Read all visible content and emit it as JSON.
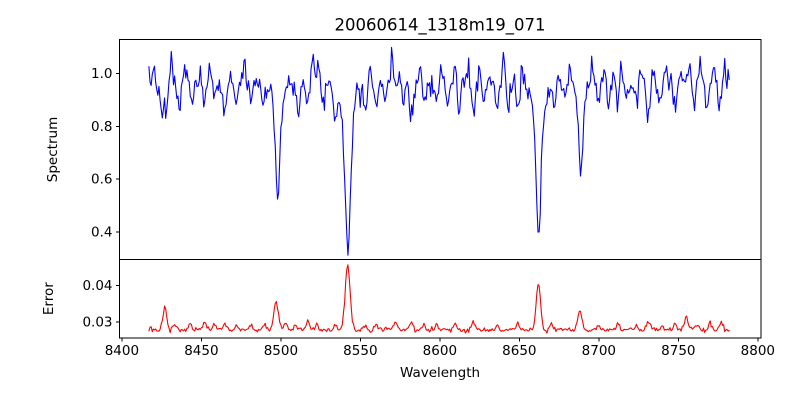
{
  "figure": {
    "background": "#ffffff",
    "frame_color": "#000000",
    "text_color": "#000000"
  },
  "chart_data": {
    "type": "line",
    "title": "20060614_1318m19_071",
    "xlabel": "Wavelength",
    "grid": false,
    "legend": null,
    "x_axis": {
      "lim": [
        8398.5,
        8802.0
      ],
      "ticks": [
        8400,
        8450,
        8500,
        8550,
        8600,
        8650,
        8700,
        8750,
        8800
      ],
      "tick_labels": [
        "8400",
        "8450",
        "8500",
        "8550",
        "8600",
        "8650",
        "8700",
        "8750",
        "8800"
      ]
    },
    "data_x_range": [
      8417,
      8782
    ],
    "panels": [
      {
        "ylabel": "Spectrum",
        "ylim": [
          0.295,
          1.129
        ],
        "yticks": [
          0.4,
          0.6,
          0.8,
          1.0
        ],
        "ytick_labels": [
          "0.4",
          "0.6",
          "0.8",
          "1.0"
        ],
        "line_color": "#0000ff",
        "main_absorption_lines": [
          {
            "wavelength": 8498,
            "core_flux": 0.53
          },
          {
            "wavelength": 8542,
            "core_flux": 0.33
          },
          {
            "wavelength": 8662,
            "core_flux": 0.37
          },
          {
            "wavelength": 8688,
            "core_flux": 0.68
          }
        ],
        "series": {
          "x_start": 8417,
          "x_end": 8782,
          "n": 520,
          "seed": 7,
          "base_level": 0.968,
          "noise_sd": 0.021,
          "feature_format": "[center_wavelength, amplitude, gaussian_sigma]",
          "dips": [
            [
              8498.0,
              0.33,
              1.3
            ],
            [
              8498.0,
              0.105,
              3.5
            ],
            [
              8542.1,
              0.5,
              1.6
            ],
            [
              8542.1,
              0.14,
              4.5
            ],
            [
              8662.1,
              0.46,
              1.5
            ],
            [
              8662.1,
              0.14,
              4.0
            ],
            [
              8688.6,
              0.29,
              1.4
            ],
            [
              8688.6,
              0.04,
              3.0
            ],
            [
              8425,
              0.13,
              1.2
            ],
            [
              8428,
              0.12,
              1.0
            ],
            [
              8436,
              0.1,
              1.1
            ],
            [
              8444,
              0.08,
              1.0
            ],
            [
              8452,
              0.09,
              1.0
            ],
            [
              8458,
              0.07,
              0.9
            ],
            [
              8465,
              0.14,
              1.1
            ],
            [
              8472,
              0.08,
              0.9
            ],
            [
              8481,
              0.07,
              0.9
            ],
            [
              8489,
              0.09,
              1.0
            ],
            [
              8511,
              0.09,
              1.0
            ],
            [
              8517,
              0.1,
              1.1
            ],
            [
              8527,
              0.07,
              0.9
            ],
            [
              8534,
              0.1,
              1.0
            ],
            [
              8553,
              0.08,
              0.9
            ],
            [
              8560,
              0.09,
              1.0
            ],
            [
              8566,
              0.08,
              0.9
            ],
            [
              8577,
              0.07,
              0.9
            ],
            [
              8582,
              0.12,
              1.1
            ],
            [
              8590,
              0.08,
              0.9
            ],
            [
              8598,
              0.08,
              0.9
            ],
            [
              8605,
              0.09,
              1.0
            ],
            [
              8612,
              0.11,
              1.0
            ],
            [
              8621,
              0.12,
              1.0
            ],
            [
              8628,
              0.08,
              0.9
            ],
            [
              8636,
              0.1,
              1.0
            ],
            [
              8643,
              0.08,
              0.9
            ],
            [
              8649,
              0.1,
              1.0
            ],
            [
              8672,
              0.08,
              0.9
            ],
            [
              8678,
              0.07,
              0.9
            ],
            [
              8700,
              0.08,
              0.9
            ],
            [
              8706,
              0.07,
              0.9
            ],
            [
              8712,
              0.09,
              1.0
            ],
            [
              8718,
              0.07,
              0.9
            ],
            [
              8724,
              0.08,
              0.9
            ],
            [
              8731,
              0.13,
              1.1
            ],
            [
              8738,
              0.08,
              0.9
            ],
            [
              8748,
              0.09,
              1.0
            ],
            [
              8760,
              0.07,
              0.9
            ],
            [
              8768,
              0.08,
              0.9
            ],
            [
              8776,
              0.09,
              1.0
            ]
          ],
          "spikes": [
            [
              8420,
              0.05,
              0.8
            ],
            [
              8431,
              0.09,
              0.8
            ],
            [
              8440,
              0.06,
              0.8
            ],
            [
              8456,
              0.07,
              0.8
            ],
            [
              8468,
              0.05,
              0.7
            ],
            [
              8477,
              0.07,
              0.8
            ],
            [
              8494,
              0.05,
              0.7
            ],
            [
              8520,
              0.11,
              0.8
            ],
            [
              8524,
              0.06,
              0.7
            ],
            [
              8548,
              0.05,
              0.7
            ],
            [
              8556,
              0.06,
              0.7
            ],
            [
              8570,
              0.07,
              0.8
            ],
            [
              8575,
              0.05,
              0.7
            ],
            [
              8588,
              0.06,
              0.7
            ],
            [
              8601,
              0.05,
              0.7
            ],
            [
              8610,
              0.07,
              0.8
            ],
            [
              8618,
              0.05,
              0.7
            ],
            [
              8625,
              0.06,
              0.7
            ],
            [
              8640,
              0.07,
              0.8
            ],
            [
              8652,
              0.05,
              0.7
            ],
            [
              8682,
              0.05,
              0.7
            ],
            [
              8696,
              0.06,
              0.7
            ],
            [
              8703,
              0.05,
              0.7
            ],
            [
              8714,
              0.06,
              0.7
            ],
            [
              8726,
              0.06,
              0.7
            ],
            [
              8734,
              0.05,
              0.7
            ],
            [
              8742,
              0.07,
              0.8
            ],
            [
              8752,
              0.06,
              0.7
            ],
            [
              8757,
              0.08,
              0.8
            ],
            [
              8764,
              0.05,
              0.7
            ],
            [
              8772,
              0.06,
              0.7
            ],
            [
              8779,
              0.05,
              0.7
            ]
          ]
        }
      },
      {
        "ylabel": "Error",
        "ylim": [
          0.0256,
          0.0472
        ],
        "yticks": [
          0.03,
          0.04
        ],
        "ytick_labels": [
          "0.03",
          "0.04"
        ],
        "line_color": "#ff0000",
        "main_error_peaks": [
          {
            "wavelength": 8427,
            "peak": 0.0336
          },
          {
            "wavelength": 8497,
            "peak": 0.0356
          },
          {
            "wavelength": 8542,
            "peak": 0.046
          },
          {
            "wavelength": 8662,
            "peak": 0.04
          },
          {
            "wavelength": 8688,
            "peak": 0.033
          }
        ],
        "series": {
          "x_start": 8417,
          "x_end": 8782,
          "n": 520,
          "seed": 13,
          "base_level": 0.0278,
          "noise_sd": 0.00035,
          "feature_format": "[center_wavelength, amplitude, gaussian_sigma]",
          "dips": [],
          "spikes": [
            [
              8427,
              0.0058,
              1.3
            ],
            [
              8433,
              0.0014,
              1.0
            ],
            [
              8443,
              0.0017,
              1.0
            ],
            [
              8452,
              0.0021,
              1.0
            ],
            [
              8458,
              0.0012,
              0.9
            ],
            [
              8465,
              0.0019,
              1.0
            ],
            [
              8472,
              0.0012,
              0.9
            ],
            [
              8481,
              0.0013,
              0.9
            ],
            [
              8490,
              0.0019,
              1.0
            ],
            [
              8497,
              0.0078,
              1.4
            ],
            [
              8503,
              0.0017,
              1.0
            ],
            [
              8509,
              0.0013,
              0.9
            ],
            [
              8517,
              0.0024,
              1.1
            ],
            [
              8523,
              0.0012,
              0.9
            ],
            [
              8534,
              0.0017,
              1.0
            ],
            [
              8542,
              0.0182,
              1.5
            ],
            [
              8553,
              0.0012,
              0.9
            ],
            [
              8560,
              0.0017,
              1.0
            ],
            [
              8566,
              0.0012,
              0.9
            ],
            [
              8572,
              0.0019,
              1.0
            ],
            [
              8582,
              0.0021,
              1.1
            ],
            [
              8590,
              0.0012,
              0.9
            ],
            [
              8598,
              0.0014,
              0.9
            ],
            [
              8610,
              0.0019,
              1.0
            ],
            [
              8621,
              0.0021,
              1.0
            ],
            [
              8636,
              0.0015,
              1.0
            ],
            [
              8649,
              0.0019,
              1.0
            ],
            [
              8662,
              0.0124,
              1.4
            ],
            [
              8670,
              0.0019,
              1.0
            ],
            [
              8688,
              0.0052,
              1.3
            ],
            [
              8700,
              0.0013,
              0.9
            ],
            [
              8712,
              0.0015,
              1.0
            ],
            [
              8724,
              0.0013,
              0.9
            ],
            [
              8731,
              0.0023,
              1.1
            ],
            [
              8740,
              0.0013,
              0.9
            ],
            [
              8748,
              0.0017,
              1.0
            ],
            [
              8755,
              0.0033,
              1.1
            ],
            [
              8762,
              0.0015,
              1.0
            ],
            [
              8770,
              0.0019,
              1.0
            ],
            [
              8777,
              0.0021,
              1.0
            ]
          ]
        }
      }
    ]
  }
}
